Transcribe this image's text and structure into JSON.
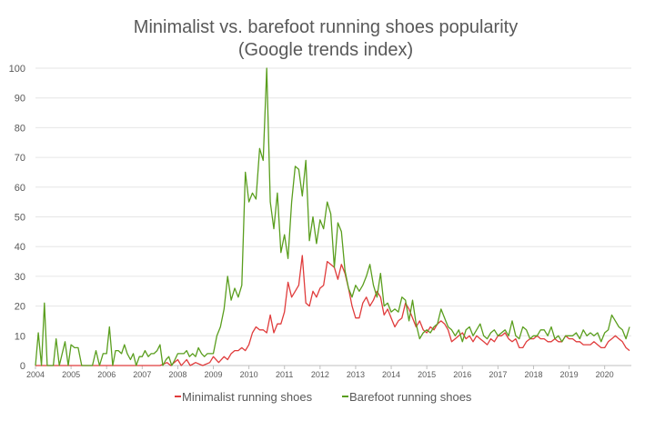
{
  "chart_data": {
    "type": "line",
    "title": [
      "Minimalist vs. barefoot running shoes popularity",
      "(Google trends index)"
    ],
    "xlabel": "",
    "ylabel": "",
    "ylim": [
      0,
      100
    ],
    "yticks": [
      "0",
      "10",
      "20",
      "30",
      "40",
      "50",
      "60",
      "70",
      "80",
      "90",
      "100"
    ],
    "xticks": [
      "2004",
      "2005",
      "2006",
      "2007",
      "2008",
      "2009",
      "2010",
      "2011",
      "2012",
      "2013",
      "2014",
      "2015",
      "2016",
      "2017",
      "2018",
      "2019",
      "2020"
    ],
    "xlim": [
      2004.0,
      2020.75
    ],
    "grid": "horizontal",
    "legend": "bottom-center",
    "series": [
      {
        "name": "Minimalist running shoes",
        "color": "#e03c3c",
        "points": [
          [
            2004.0,
            0
          ],
          [
            2007.5,
            0
          ],
          [
            2007.7,
            1
          ],
          [
            2007.8,
            0
          ],
          [
            2008.0,
            2
          ],
          [
            2008.1,
            0
          ],
          [
            2008.25,
            2
          ],
          [
            2008.35,
            0
          ],
          [
            2008.5,
            1
          ],
          [
            2008.7,
            0
          ],
          [
            2008.9,
            1
          ],
          [
            2009.0,
            3
          ],
          [
            2009.15,
            1
          ],
          [
            2009.3,
            3
          ],
          [
            2009.4,
            2
          ],
          [
            2009.5,
            4
          ],
          [
            2009.6,
            5
          ],
          [
            2009.7,
            5
          ],
          [
            2009.8,
            6
          ],
          [
            2009.9,
            5
          ],
          [
            2010.0,
            7
          ],
          [
            2010.1,
            11
          ],
          [
            2010.2,
            13
          ],
          [
            2010.3,
            12
          ],
          [
            2010.4,
            12
          ],
          [
            2010.5,
            11
          ],
          [
            2010.6,
            17
          ],
          [
            2010.7,
            11
          ],
          [
            2010.8,
            14
          ],
          [
            2010.9,
            14
          ],
          [
            2011.0,
            18
          ],
          [
            2011.1,
            28
          ],
          [
            2011.2,
            23
          ],
          [
            2011.3,
            25
          ],
          [
            2011.4,
            27
          ],
          [
            2011.5,
            37
          ],
          [
            2011.6,
            21
          ],
          [
            2011.7,
            20
          ],
          [
            2011.8,
            25
          ],
          [
            2011.9,
            23
          ],
          [
            2012.0,
            26
          ],
          [
            2012.1,
            27
          ],
          [
            2012.2,
            35
          ],
          [
            2012.3,
            34
          ],
          [
            2012.4,
            33
          ],
          [
            2012.5,
            29
          ],
          [
            2012.6,
            34
          ],
          [
            2012.7,
            31
          ],
          [
            2012.8,
            26
          ],
          [
            2012.9,
            20
          ],
          [
            2013.0,
            16
          ],
          [
            2013.1,
            16
          ],
          [
            2013.2,
            21
          ],
          [
            2013.3,
            23
          ],
          [
            2013.4,
            20
          ],
          [
            2013.5,
            22
          ],
          [
            2013.6,
            25
          ],
          [
            2013.7,
            23
          ],
          [
            2013.8,
            17
          ],
          [
            2013.9,
            19
          ],
          [
            2014.0,
            16
          ],
          [
            2014.1,
            13
          ],
          [
            2014.2,
            15
          ],
          [
            2014.3,
            16
          ],
          [
            2014.4,
            21
          ],
          [
            2014.5,
            19
          ],
          [
            2014.6,
            16
          ],
          [
            2014.7,
            13
          ],
          [
            2014.8,
            15
          ],
          [
            2014.9,
            12
          ],
          [
            2015.0,
            11
          ],
          [
            2015.1,
            13
          ],
          [
            2015.2,
            12
          ],
          [
            2015.3,
            14
          ],
          [
            2015.4,
            15
          ],
          [
            2015.5,
            14
          ],
          [
            2015.6,
            12
          ],
          [
            2015.7,
            8
          ],
          [
            2015.8,
            9
          ],
          [
            2015.9,
            10
          ],
          [
            2016.0,
            11
          ],
          [
            2016.1,
            9
          ],
          [
            2016.2,
            10
          ],
          [
            2016.3,
            8
          ],
          [
            2016.4,
            10
          ],
          [
            2016.5,
            9
          ],
          [
            2016.6,
            8
          ],
          [
            2016.7,
            7
          ],
          [
            2016.8,
            9
          ],
          [
            2016.9,
            8
          ],
          [
            2017.0,
            10
          ],
          [
            2017.1,
            10
          ],
          [
            2017.2,
            11
          ],
          [
            2017.3,
            9
          ],
          [
            2017.4,
            8
          ],
          [
            2017.5,
            9
          ],
          [
            2017.6,
            6
          ],
          [
            2017.7,
            6
          ],
          [
            2017.8,
            8
          ],
          [
            2017.9,
            9
          ],
          [
            2018.0,
            9
          ],
          [
            2018.1,
            10
          ],
          [
            2018.2,
            9
          ],
          [
            2018.3,
            9
          ],
          [
            2018.4,
            8
          ],
          [
            2018.5,
            8
          ],
          [
            2018.6,
            9
          ],
          [
            2018.7,
            8
          ],
          [
            2018.8,
            8
          ],
          [
            2018.9,
            10
          ],
          [
            2019.0,
            9
          ],
          [
            2019.1,
            9
          ],
          [
            2019.2,
            8
          ],
          [
            2019.3,
            8
          ],
          [
            2019.4,
            7
          ],
          [
            2019.5,
            7
          ],
          [
            2019.6,
            7
          ],
          [
            2019.7,
            8
          ],
          [
            2019.8,
            7
          ],
          [
            2019.9,
            6
          ],
          [
            2020.0,
            6
          ],
          [
            2020.1,
            8
          ],
          [
            2020.2,
            9
          ],
          [
            2020.3,
            10
          ],
          [
            2020.4,
            9
          ],
          [
            2020.5,
            8
          ],
          [
            2020.6,
            6
          ],
          [
            2020.7,
            5
          ]
        ]
      },
      {
        "name": "Barefoot running shoes",
        "color": "#5a9e1e",
        "points": [
          [
            2004.0,
            0
          ],
          [
            2004.08,
            11
          ],
          [
            2004.17,
            0
          ],
          [
            2004.25,
            21
          ],
          [
            2004.33,
            0
          ],
          [
            2004.5,
            0
          ],
          [
            2004.58,
            9
          ],
          [
            2004.67,
            0
          ],
          [
            2004.83,
            8
          ],
          [
            2004.92,
            0
          ],
          [
            2005.0,
            7
          ],
          [
            2005.1,
            6
          ],
          [
            2005.2,
            6
          ],
          [
            2005.3,
            0
          ],
          [
            2005.6,
            0
          ],
          [
            2005.7,
            5
          ],
          [
            2005.8,
            0
          ],
          [
            2005.9,
            4
          ],
          [
            2006.0,
            4
          ],
          [
            2006.08,
            13
          ],
          [
            2006.17,
            0
          ],
          [
            2006.25,
            5
          ],
          [
            2006.33,
            5
          ],
          [
            2006.42,
            4
          ],
          [
            2006.5,
            7
          ],
          [
            2006.58,
            4
          ],
          [
            2006.67,
            2
          ],
          [
            2006.75,
            4
          ],
          [
            2006.83,
            0
          ],
          [
            2006.92,
            3
          ],
          [
            2007.0,
            3
          ],
          [
            2007.08,
            5
          ],
          [
            2007.17,
            3
          ],
          [
            2007.25,
            4
          ],
          [
            2007.33,
            4
          ],
          [
            2007.42,
            5
          ],
          [
            2007.5,
            7
          ],
          [
            2007.58,
            0
          ],
          [
            2007.67,
            2
          ],
          [
            2007.75,
            3
          ],
          [
            2007.83,
            0
          ],
          [
            2007.92,
            2
          ],
          [
            2008.0,
            4
          ],
          [
            2008.08,
            4
          ],
          [
            2008.17,
            4
          ],
          [
            2008.25,
            5
          ],
          [
            2008.33,
            3
          ],
          [
            2008.42,
            4
          ],
          [
            2008.5,
            3
          ],
          [
            2008.58,
            6
          ],
          [
            2008.67,
            4
          ],
          [
            2008.75,
            3
          ],
          [
            2008.83,
            4
          ],
          [
            2008.92,
            4
          ],
          [
            2009.0,
            4
          ],
          [
            2009.1,
            10
          ],
          [
            2009.2,
            13
          ],
          [
            2009.3,
            19
          ],
          [
            2009.4,
            30
          ],
          [
            2009.5,
            22
          ],
          [
            2009.6,
            26
          ],
          [
            2009.7,
            23
          ],
          [
            2009.8,
            27
          ],
          [
            2009.9,
            65
          ],
          [
            2010.0,
            55
          ],
          [
            2010.1,
            58
          ],
          [
            2010.2,
            56
          ],
          [
            2010.3,
            73
          ],
          [
            2010.4,
            69
          ],
          [
            2010.5,
            100
          ],
          [
            2010.6,
            55
          ],
          [
            2010.7,
            46
          ],
          [
            2010.8,
            58
          ],
          [
            2010.9,
            38
          ],
          [
            2011.0,
            44
          ],
          [
            2011.1,
            36
          ],
          [
            2011.2,
            55
          ],
          [
            2011.3,
            67
          ],
          [
            2011.4,
            66
          ],
          [
            2011.5,
            57
          ],
          [
            2011.6,
            69
          ],
          [
            2011.7,
            42
          ],
          [
            2011.8,
            50
          ],
          [
            2011.9,
            41
          ],
          [
            2012.0,
            49
          ],
          [
            2012.1,
            46
          ],
          [
            2012.2,
            55
          ],
          [
            2012.3,
            51
          ],
          [
            2012.4,
            33
          ],
          [
            2012.5,
            48
          ],
          [
            2012.6,
            45
          ],
          [
            2012.7,
            32
          ],
          [
            2012.8,
            26
          ],
          [
            2012.9,
            23
          ],
          [
            2013.0,
            27
          ],
          [
            2013.1,
            25
          ],
          [
            2013.2,
            27
          ],
          [
            2013.3,
            30
          ],
          [
            2013.4,
            34
          ],
          [
            2013.5,
            27
          ],
          [
            2013.6,
            23
          ],
          [
            2013.7,
            31
          ],
          [
            2013.8,
            20
          ],
          [
            2013.9,
            21
          ],
          [
            2014.0,
            18
          ],
          [
            2014.1,
            19
          ],
          [
            2014.2,
            18
          ],
          [
            2014.3,
            23
          ],
          [
            2014.4,
            22
          ],
          [
            2014.5,
            15
          ],
          [
            2014.6,
            22
          ],
          [
            2014.7,
            14
          ],
          [
            2014.8,
            9
          ],
          [
            2014.9,
            11
          ],
          [
            2015.0,
            12
          ],
          [
            2015.1,
            11
          ],
          [
            2015.2,
            13
          ],
          [
            2015.3,
            14
          ],
          [
            2015.4,
            19
          ],
          [
            2015.5,
            16
          ],
          [
            2015.6,
            13
          ],
          [
            2015.7,
            12
          ],
          [
            2015.8,
            10
          ],
          [
            2015.9,
            12
          ],
          [
            2016.0,
            8
          ],
          [
            2016.1,
            12
          ],
          [
            2016.2,
            13
          ],
          [
            2016.3,
            10
          ],
          [
            2016.4,
            12
          ],
          [
            2016.5,
            14
          ],
          [
            2016.6,
            10
          ],
          [
            2016.7,
            9
          ],
          [
            2016.8,
            11
          ],
          [
            2016.9,
            12
          ],
          [
            2017.0,
            10
          ],
          [
            2017.1,
            11
          ],
          [
            2017.2,
            12
          ],
          [
            2017.3,
            10
          ],
          [
            2017.4,
            15
          ],
          [
            2017.5,
            10
          ],
          [
            2017.6,
            9
          ],
          [
            2017.7,
            13
          ],
          [
            2017.8,
            12
          ],
          [
            2017.9,
            9
          ],
          [
            2018.0,
            10
          ],
          [
            2018.1,
            10
          ],
          [
            2018.2,
            12
          ],
          [
            2018.3,
            12
          ],
          [
            2018.4,
            10
          ],
          [
            2018.5,
            13
          ],
          [
            2018.6,
            9
          ],
          [
            2018.7,
            10
          ],
          [
            2018.8,
            8
          ],
          [
            2018.9,
            10
          ],
          [
            2019.0,
            10
          ],
          [
            2019.1,
            10
          ],
          [
            2019.2,
            11
          ],
          [
            2019.3,
            9
          ],
          [
            2019.4,
            12
          ],
          [
            2019.5,
            10
          ],
          [
            2019.6,
            11
          ],
          [
            2019.7,
            10
          ],
          [
            2019.8,
            11
          ],
          [
            2019.9,
            8
          ],
          [
            2020.0,
            11
          ],
          [
            2020.1,
            12
          ],
          [
            2020.2,
            17
          ],
          [
            2020.3,
            15
          ],
          [
            2020.4,
            13
          ],
          [
            2020.5,
            12
          ],
          [
            2020.6,
            9
          ],
          [
            2020.7,
            13
          ]
        ]
      }
    ]
  }
}
